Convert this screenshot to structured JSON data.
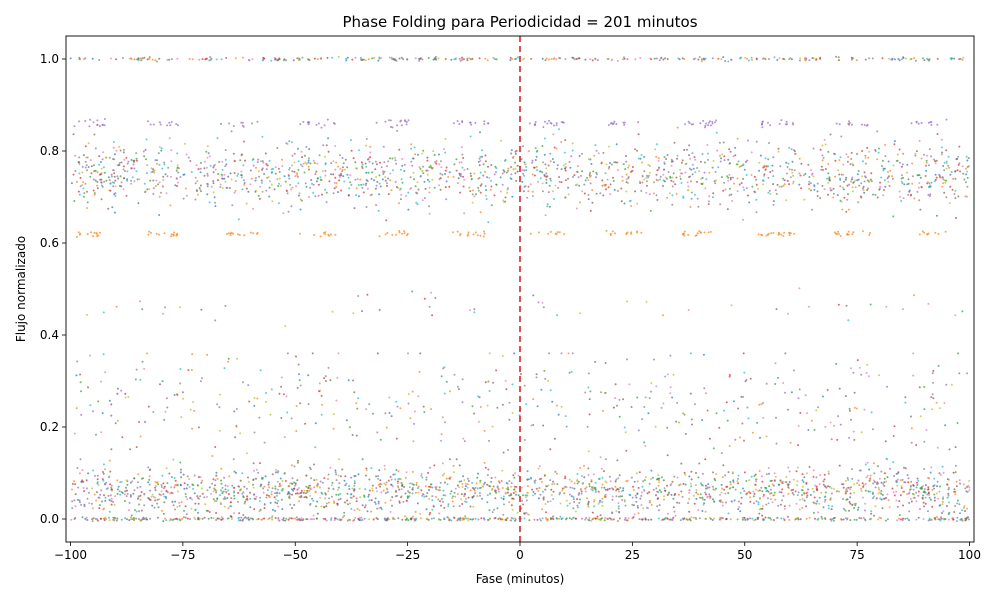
{
  "chart_data": {
    "type": "scatter",
    "title": "Phase Folding para Periodicidad = 201 minutos",
    "xlabel": "Fase (minutos)",
    "ylabel": "Flujo normalizado",
    "xlim": [
      -101,
      101
    ],
    "ylim": [
      -0.05,
      1.05
    ],
    "xticks": [
      -100,
      -75,
      -50,
      -25,
      0,
      25,
      50,
      75,
      100
    ],
    "xtick_labels": [
      "−100",
      "−75",
      "−50",
      "−25",
      "0",
      "25",
      "50",
      "75",
      "100"
    ],
    "yticks": [
      0.0,
      0.2,
      0.4,
      0.6,
      0.8,
      1.0
    ],
    "ytick_labels": [
      "0.0",
      "0.2",
      "0.4",
      "0.6",
      "0.8",
      "1.0"
    ],
    "grid": false,
    "legend": "none",
    "series_colors": [
      "#1f77b4",
      "#ff7f0e",
      "#2ca02c",
      "#d62728",
      "#9467bd",
      "#8c564b",
      "#e377c2",
      "#7f7f7f",
      "#bcbd22",
      "#17becf"
    ],
    "point_clusters": [
      {
        "flux": 1.0,
        "spread": 0.002,
        "share": 0.06,
        "description_level": "top"
      },
      {
        "flux": 0.86,
        "spread": 0.004,
        "share": 0.03,
        "description_level": "upper-line"
      },
      {
        "flux": 0.75,
        "spread": 0.035,
        "share": 0.32,
        "description_level": "upper-band"
      },
      {
        "flux": 0.62,
        "spread": 0.003,
        "share": 0.03,
        "description_level": "orange-line"
      },
      {
        "flux": 0.46,
        "spread": 0.02,
        "share": 0.01,
        "description_level": "sparse-mid"
      },
      {
        "flux": 0.25,
        "spread": 0.06,
        "share": 0.09,
        "description_level": "lower-scatter"
      },
      {
        "flux": 0.06,
        "spread": 0.025,
        "share": 0.36,
        "description_level": "lower-band"
      },
      {
        "flux": 0.0,
        "spread": 0.002,
        "share": 0.1,
        "description_level": "bottom"
      }
    ],
    "marker_phase": 0,
    "marker_color": "#d62728"
  }
}
